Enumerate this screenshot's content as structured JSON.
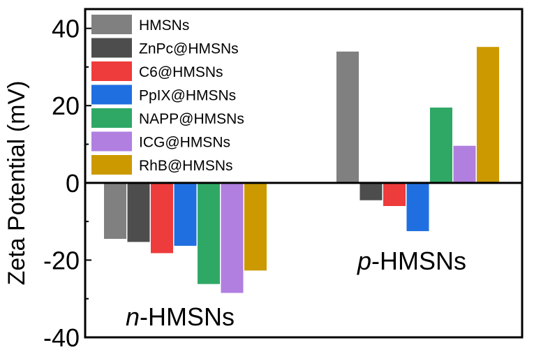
{
  "chart_data": {
    "type": "bar",
    "title": "",
    "xlabel": "",
    "ylabel": "Zeta Potential (mV)",
    "ylim": [
      -40,
      45
    ],
    "yticks": [
      40,
      20,
      0,
      -20,
      -40
    ],
    "grid": false,
    "legend_position": "top-left",
    "categories": [
      "n-HMSNs",
      "p-HMSNs"
    ],
    "category_labels": [
      {
        "prefix": "n",
        "suffix": "-HMSNs"
      },
      {
        "prefix": "p",
        "suffix": "-HMSNs"
      }
    ],
    "series": [
      {
        "name": "HMSNs",
        "color": "#808080",
        "values": [
          -14.5,
          34.0
        ]
      },
      {
        "name": "ZnPc@HMSNs",
        "color": "#4d4d4d",
        "values": [
          -15.3,
          -4.5
        ]
      },
      {
        "name": "C6@HMSNs",
        "color": "#ee3b3b",
        "values": [
          -18.2,
          -6.0
        ]
      },
      {
        "name": "PpIX@HMSNs",
        "color": "#1f6fe0",
        "values": [
          -16.3,
          -12.5
        ]
      },
      {
        "name": "NAPP@HMSNs",
        "color": "#2fa866",
        "values": [
          -26.2,
          19.5
        ]
      },
      {
        "name": "ICG@HMSNs",
        "color": "#b07fe0",
        "values": [
          -28.5,
          9.6
        ]
      },
      {
        "name": "RhB@HMSNs",
        "color": "#cc9900",
        "values": [
          -22.7,
          35.2
        ]
      }
    ]
  }
}
